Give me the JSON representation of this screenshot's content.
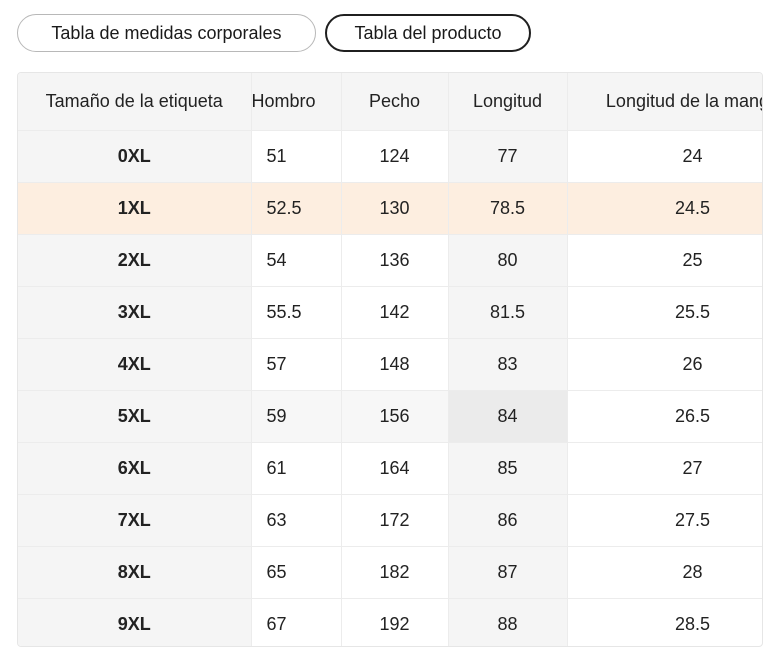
{
  "tabs": [
    {
      "label": "Tabla de medidas corporales",
      "active": false
    },
    {
      "label": "Tabla del producto",
      "active": true
    }
  ],
  "table": {
    "headers": [
      "Tamaño de la etiqueta",
      "Hombro",
      "Pecho",
      "Longitud",
      "Longitud de la manga"
    ],
    "rows": [
      {
        "size": "0XL",
        "hombro": "51",
        "pecho": "124",
        "longitud": "77",
        "manga": "24"
      },
      {
        "size": "1XL",
        "hombro": "52.5",
        "pecho": "130",
        "longitud": "78.5",
        "manga": "24.5"
      },
      {
        "size": "2XL",
        "hombro": "54",
        "pecho": "136",
        "longitud": "80",
        "manga": "25"
      },
      {
        "size": "3XL",
        "hombro": "55.5",
        "pecho": "142",
        "longitud": "81.5",
        "manga": "25.5"
      },
      {
        "size": "4XL",
        "hombro": "57",
        "pecho": "148",
        "longitud": "83",
        "manga": "26"
      },
      {
        "size": "5XL",
        "hombro": "59",
        "pecho": "156",
        "longitud": "84",
        "manga": "26.5"
      },
      {
        "size": "6XL",
        "hombro": "61",
        "pecho": "164",
        "longitud": "85",
        "manga": "27"
      },
      {
        "size": "7XL",
        "hombro": "63",
        "pecho": "172",
        "longitud": "86",
        "manga": "27.5"
      },
      {
        "size": "8XL",
        "hombro": "65",
        "pecho": "182",
        "longitud": "87",
        "manga": "28"
      },
      {
        "size": "9XL",
        "hombro": "67",
        "pecho": "192",
        "longitud": "88",
        "manga": "28.5"
      }
    ],
    "highlight_row_color": "#fdeee0",
    "label_column_color": "#f5f5f5"
  }
}
